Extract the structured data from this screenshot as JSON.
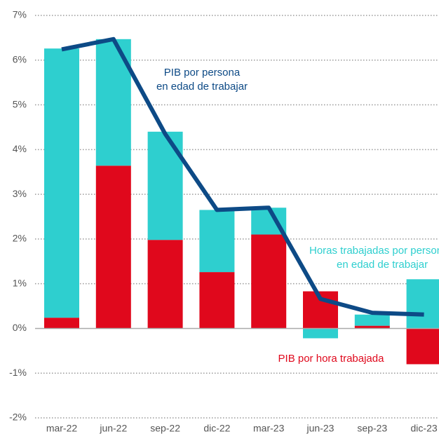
{
  "chart_data": {
    "type": "stacked-bar-line",
    "categories": [
      "mar-22",
      "jun-22",
      "sep-22",
      "dic-22",
      "mar-23",
      "jun-23",
      "sep-23",
      "dic-23"
    ],
    "series": [
      {
        "name": "PIB por hora trabajada",
        "type": "bar",
        "color": "#e0081c",
        "values": [
          0.24,
          3.64,
          1.98,
          1.26,
          2.1,
          0.83,
          0.06,
          -0.8
        ]
      },
      {
        "name": [
          "Horas trabajadas  por persona",
          "en edad de trabajar"
        ],
        "type": "bar",
        "color": "#2ecfcf",
        "values": [
          6.02,
          2.83,
          2.42,
          1.39,
          0.6,
          -0.22,
          0.25,
          1.1
        ]
      },
      {
        "name": [
          "PIB por persona",
          "en edad de trabajar"
        ],
        "type": "line",
        "color": "#0d4a86",
        "values": [
          6.24,
          6.47,
          4.35,
          2.65,
          2.7,
          0.66,
          0.35,
          0.31
        ]
      }
    ],
    "ylim": [
      -2,
      7
    ],
    "yticks": [
      {
        "value": -2,
        "label": "-2%"
      },
      {
        "value": -1,
        "label": "-1%"
      },
      {
        "value": 0,
        "label": "0%"
      },
      {
        "value": 1,
        "label": "1%"
      },
      {
        "value": 2,
        "label": "2%"
      },
      {
        "value": 3,
        "label": "3%"
      },
      {
        "value": 4,
        "label": "4%"
      },
      {
        "value": 5,
        "label": "5%"
      },
      {
        "value": 6,
        "label": "6%"
      },
      {
        "value": 7,
        "label": "7%"
      }
    ],
    "grid": true
  }
}
